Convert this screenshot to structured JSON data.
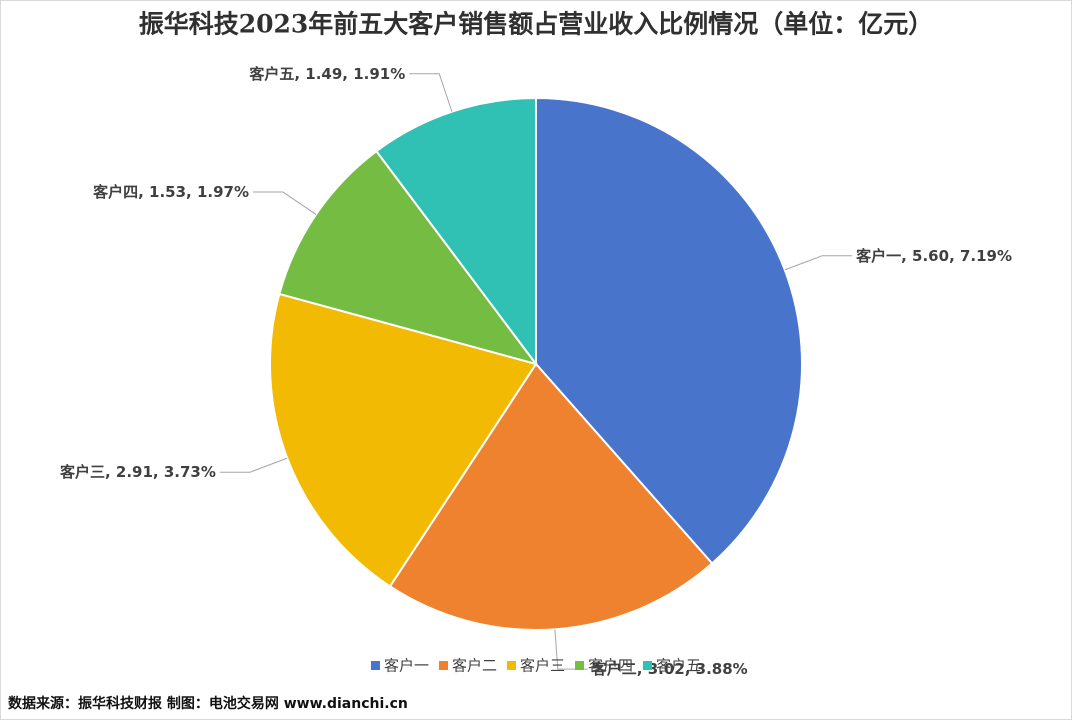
{
  "chart_data": {
    "type": "pie",
    "title": "振华科技2023年前五大客户销售额占营业收入比例情况（单位：亿元）",
    "categories": [
      "客户一",
      "客户二",
      "客户三",
      "客户四",
      "客户五"
    ],
    "values": [
      5.6,
      3.02,
      2.91,
      1.53,
      1.49
    ],
    "value_labels": [
      "5.60",
      "3.02",
      "2.91",
      "1.53",
      "1.49"
    ],
    "percents": [
      7.19,
      3.88,
      3.73,
      1.97,
      1.91
    ],
    "percent_labels": [
      "7.19%",
      "3.88%",
      "3.73%",
      "1.97%",
      "1.91%"
    ],
    "label_separator": ", ",
    "colors": [
      "#4874cb",
      "#ee822f",
      "#f2ba02",
      "#75bd42",
      "#30c0b4"
    ],
    "legend": "bottom"
  },
  "source": "数据来源：振华科技财报  制图：电池交易网 www.dianchi.cn"
}
